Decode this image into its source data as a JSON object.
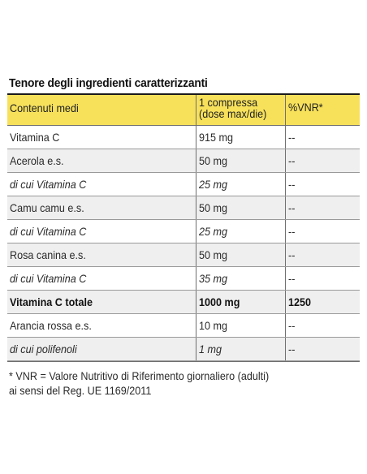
{
  "title": "Tenore degli ingredienti caratterizzanti",
  "table": {
    "headers": {
      "col1": "Contenuti medi",
      "col2_line1": "1 compressa",
      "col2_line2": "(dose max/die)",
      "col3": "%VNR*"
    },
    "rows": [
      {
        "name": "Vitamina C",
        "qty": "915 mg",
        "vnr": "--"
      },
      {
        "name": "Acerola e.s.",
        "qty": "50 mg",
        "vnr": "--"
      },
      {
        "name": "di cui Vitamina C",
        "qty": "25 mg",
        "vnr": "--"
      },
      {
        "name": "Camu camu e.s.",
        "qty": "50 mg",
        "vnr": "--"
      },
      {
        "name": "di cui Vitamina C",
        "qty": "25 mg",
        "vnr": "--"
      },
      {
        "name": "Rosa canina e.s.",
        "qty": "50 mg",
        "vnr": "--"
      },
      {
        "name": "di cui Vitamina C",
        "qty": "35 mg",
        "vnr": "--"
      },
      {
        "name": "Vitamina C totale",
        "qty": "1000 mg",
        "vnr": "1250"
      },
      {
        "name": "Arancia rossa e.s.",
        "qty": "10 mg",
        "vnr": "--"
      },
      {
        "name": "di cui polifenoli",
        "qty": "1 mg",
        "vnr": "--"
      }
    ]
  },
  "footnote": {
    "line1": "* VNR = Valore Nutritivo di Riferimento giornaliero (adulti)",
    "line2": "ai sensi del Reg. UE 1169/2011"
  },
  "colors": {
    "header_bg": "#f7e15b",
    "shaded_row": "#efefef"
  }
}
